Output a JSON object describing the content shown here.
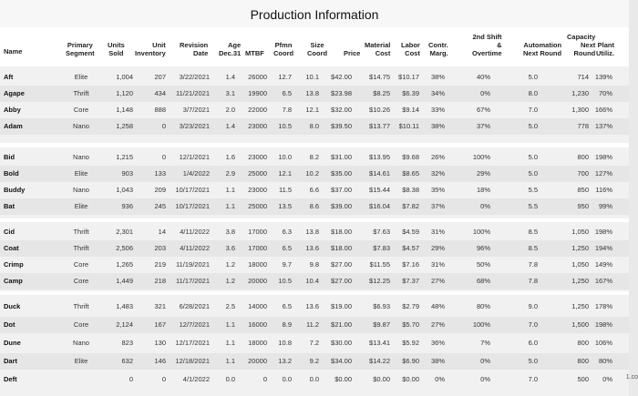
{
  "title": "Production Information",
  "headers": {
    "name": "Name",
    "segment": "Primary\nSegment",
    "units_sold": "Units\nSold",
    "inventory": "Unit\nInventory",
    "revision_date": "Revision\nDate",
    "age": "Age\nDec.31",
    "mtbf": "MTBF",
    "pfmn": "Pfmn\nCoord",
    "size": "Size\nCoord",
    "price": "Price",
    "material_cost": "Material\nCost",
    "labor_cost": "Labor\nCost",
    "contr_marg": "Contr.\nMarg.",
    "overtime": "2nd Shift\n&\nOvertime",
    "automation": "Automation\nNext Round",
    "capacity": "Capacity\nNext\nRound",
    "plant_util": "Plant\nUtiliz."
  },
  "groups": [
    {
      "rows": [
        {
          "name": "Aft",
          "segment": "Elite",
          "units": "1,004",
          "inv": "207",
          "date": "3/22/2021",
          "age": "1.4",
          "mtbf": "26000",
          "pfmn": "12.7",
          "size": "10.1",
          "price": "$42.00",
          "mat": "$14.75",
          "lab": "$10.17",
          "marg": "38%",
          "ot": "40%",
          "auto": "5.0",
          "cap": "714",
          "util": "139%"
        },
        {
          "name": "Agape",
          "segment": "Thrift",
          "units": "1,120",
          "inv": "434",
          "date": "11/21/2021",
          "age": "3.1",
          "mtbf": "19900",
          "pfmn": "6.5",
          "size": "13.8",
          "price": "$23.98",
          "mat": "$8.25",
          "lab": "$6.39",
          "marg": "34%",
          "ot": "0%",
          "auto": "8.0",
          "cap": "1,230",
          "util": "70%"
        },
        {
          "name": "Abby",
          "segment": "Core",
          "units": "1,148",
          "inv": "888",
          "date": "3/7/2021",
          "age": "2.0",
          "mtbf": "22000",
          "pfmn": "7.8",
          "size": "12.1",
          "price": "$32.00",
          "mat": "$10.26",
          "lab": "$9.14",
          "marg": "33%",
          "ot": "67%",
          "auto": "7.0",
          "cap": "1,300",
          "util": "166%"
        },
        {
          "name": "Adam",
          "segment": "Nano",
          "units": "1,258",
          "inv": "0",
          "date": "3/23/2021",
          "age": "1.4",
          "mtbf": "23000",
          "pfmn": "10.5",
          "size": "8.0",
          "price": "$39.50",
          "mat": "$13.77",
          "lab": "$10.11",
          "marg": "38%",
          "ot": "37%",
          "auto": "5.0",
          "cap": "778",
          "util": "137%"
        }
      ]
    },
    {
      "rows": [
        {
          "name": "Bid",
          "segment": "Nano",
          "units": "1,215",
          "inv": "0",
          "date": "12/1/2021",
          "age": "1.6",
          "mtbf": "23000",
          "pfmn": "10.0",
          "size": "8.2",
          "price": "$31.00",
          "mat": "$13.95",
          "lab": "$9.68",
          "marg": "26%",
          "ot": "100%",
          "auto": "5.0",
          "cap": "800",
          "util": "198%"
        },
        {
          "name": "Bold",
          "segment": "Elite",
          "units": "903",
          "inv": "133",
          "date": "1/4/2022",
          "age": "2.9",
          "mtbf": "25000",
          "pfmn": "12.1",
          "size": "10.2",
          "price": "$35.00",
          "mat": "$14.61",
          "lab": "$8.65",
          "marg": "32%",
          "ot": "29%",
          "auto": "5.0",
          "cap": "700",
          "util": "127%"
        },
        {
          "name": "Buddy",
          "segment": "Nano",
          "units": "1,043",
          "inv": "209",
          "date": "10/17/2021",
          "age": "1.1",
          "mtbf": "23000",
          "pfmn": "11.5",
          "size": "6.6",
          "price": "$37.00",
          "mat": "$15.44",
          "lab": "$8.38",
          "marg": "35%",
          "ot": "18%",
          "auto": "5.5",
          "cap": "850",
          "util": "116%"
        },
        {
          "name": "Bat",
          "segment": "Elite",
          "units": "936",
          "inv": "245",
          "date": "10/17/2021",
          "age": "1.1",
          "mtbf": "25000",
          "pfmn": "13.5",
          "size": "8.6",
          "price": "$39.00",
          "mat": "$16.04",
          "lab": "$7.82",
          "marg": "37%",
          "ot": "0%",
          "auto": "5.5",
          "cap": "950",
          "util": "99%"
        }
      ]
    },
    {
      "rows": [
        {
          "name": "Cid",
          "segment": "Thrift",
          "units": "2,301",
          "inv": "14",
          "date": "4/11/2022",
          "age": "3.8",
          "mtbf": "17000",
          "pfmn": "6.3",
          "size": "13.8",
          "price": "$18.00",
          "mat": "$7.63",
          "lab": "$4.59",
          "marg": "31%",
          "ot": "100%",
          "auto": "8.5",
          "cap": "1,050",
          "util": "198%"
        },
        {
          "name": "Coat",
          "segment": "Thrift",
          "units": "2,506",
          "inv": "203",
          "date": "4/11/2022",
          "age": "3.6",
          "mtbf": "17000",
          "pfmn": "6.5",
          "size": "13.6",
          "price": "$18.00",
          "mat": "$7.83",
          "lab": "$4.57",
          "marg": "29%",
          "ot": "96%",
          "auto": "8.5",
          "cap": "1,250",
          "util": "194%"
        },
        {
          "name": "Crimp",
          "segment": "Core",
          "units": "1,265",
          "inv": "219",
          "date": "11/19/2021",
          "age": "1.2",
          "mtbf": "18000",
          "pfmn": "9.7",
          "size": "9.8",
          "price": "$27.00",
          "mat": "$11.55",
          "lab": "$7.16",
          "marg": "31%",
          "ot": "50%",
          "auto": "7.8",
          "cap": "1,050",
          "util": "149%"
        },
        {
          "name": "Camp",
          "segment": "Core",
          "units": "1,449",
          "inv": "218",
          "date": "11/17/2021",
          "age": "1.2",
          "mtbf": "20000",
          "pfmn": "10.5",
          "size": "10.4",
          "price": "$27.00",
          "mat": "$12.25",
          "lab": "$7.37",
          "marg": "27%",
          "ot": "68%",
          "auto": "7.8",
          "cap": "1,250",
          "util": "167%"
        }
      ]
    },
    {
      "rows": [
        {
          "name": "Duck",
          "segment": "Thrift",
          "units": "1,483",
          "inv": "321",
          "date": "6/28/2021",
          "age": "2.5",
          "mtbf": "14000",
          "pfmn": "6.5",
          "size": "13.6",
          "price": "$19.00",
          "mat": "$6.93",
          "lab": "$2.79",
          "marg": "48%",
          "ot": "80%",
          "auto": "9.0",
          "cap": "1,250",
          "util": "178%"
        },
        {
          "name": "Dot",
          "segment": "Core",
          "units": "2,124",
          "inv": "167",
          "date": "12/7/2021",
          "age": "1.1",
          "mtbf": "16000",
          "pfmn": "8.9",
          "size": "11.2",
          "price": "$21.00",
          "mat": "$9.87",
          "lab": "$5.70",
          "marg": "27%",
          "ot": "100%",
          "auto": "7.0",
          "cap": "1,500",
          "util": "198%"
        },
        {
          "name": "Dune",
          "segment": "Nano",
          "units": "823",
          "inv": "130",
          "date": "12/17/2021",
          "age": "1.1",
          "mtbf": "18000",
          "pfmn": "10.8",
          "size": "7.2",
          "price": "$30.00",
          "mat": "$13.41",
          "lab": "$5.92",
          "marg": "36%",
          "ot": "7%",
          "auto": "6.0",
          "cap": "800",
          "util": "106%"
        },
        {
          "name": "Dart",
          "segment": "Elite",
          "units": "632",
          "inv": "146",
          "date": "12/18/2021",
          "age": "1.1",
          "mtbf": "20000",
          "pfmn": "13.2",
          "size": "9.2",
          "price": "$34.00",
          "mat": "$14.22",
          "lab": "$6.90",
          "marg": "38%",
          "ot": "0%",
          "auto": "5.0",
          "cap": "800",
          "util": "80%"
        },
        {
          "name": "Deft",
          "segment": "",
          "units": "0",
          "inv": "0",
          "date": "4/1/2022",
          "age": "0.0",
          "mtbf": "0",
          "pfmn": "0.0",
          "size": "0.0",
          "price": "$0.00",
          "mat": "$0.00",
          "lab": "$0.00",
          "marg": "0%",
          "ot": "0%",
          "auto": "7.0",
          "cap": "500",
          "util": "0%"
        }
      ]
    }
  ],
  "edge_text": "1.co"
}
